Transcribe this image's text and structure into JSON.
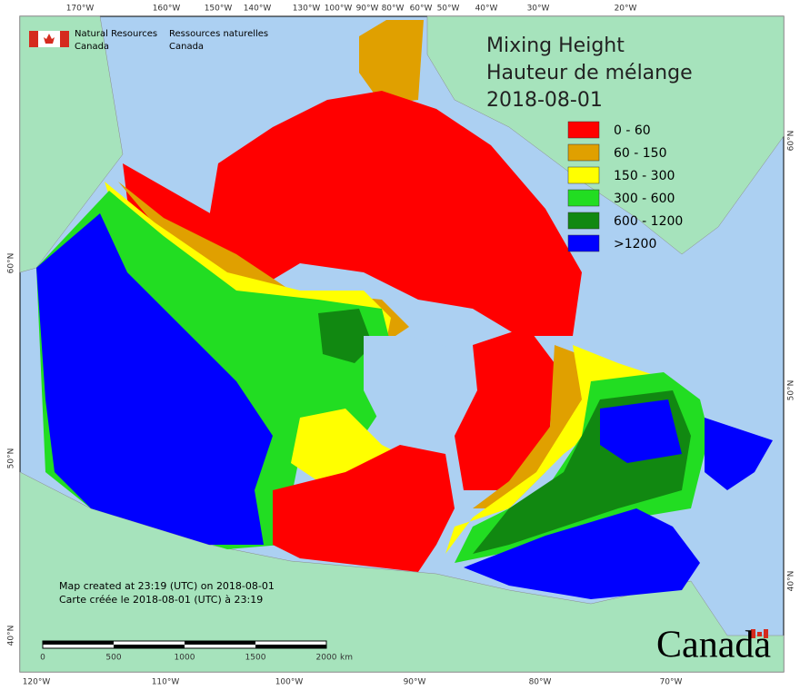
{
  "agency": {
    "en_line1": "Natural Resources",
    "en_line2": "Canada",
    "fr_line1": "Ressources naturelles",
    "fr_line2": "Canada"
  },
  "title": {
    "line1": "Mixing Height",
    "line2": "Hauteur de mélange",
    "date": "2018-08-01"
  },
  "legend": [
    {
      "label": "0 - 60",
      "color": "#ff0000"
    },
    {
      "label": "60 - 150",
      "color": "#e0a000"
    },
    {
      "label": "150 - 300",
      "color": "#ffff00"
    },
    {
      "label": "300 - 600",
      "color": "#22dd22"
    },
    {
      "label": "600 - 1200",
      "color": "#118811"
    },
    {
      "label": ">1200",
      "color": "#0000ff"
    }
  ],
  "graticule": {
    "top": [
      "170°W",
      "160°W",
      "150°W",
      "140°W",
      "130°W",
      "100°W",
      "90°W",
      "80°W",
      "60°W",
      "50°W",
      "40°W",
      "30°W",
      "20°W"
    ],
    "bottom": [
      "120°W",
      "110°W",
      "100°W",
      "90°W",
      "80°W",
      "70°W"
    ],
    "left": [
      "60°N",
      "50°N",
      "40°N"
    ],
    "right": [
      "60°N",
      "50°N",
      "40°N"
    ]
  },
  "footer": {
    "created_en": "Map created at 23:19 (UTC) on 2018-08-01",
    "created_fr": "Carte créée le 2018-08-01 (UTC) à 23:19"
  },
  "scale_bar": {
    "labels": [
      "0",
      "500",
      "1000",
      "1500",
      "2000"
    ],
    "unit": "km"
  },
  "wordmark": "Canada"
}
